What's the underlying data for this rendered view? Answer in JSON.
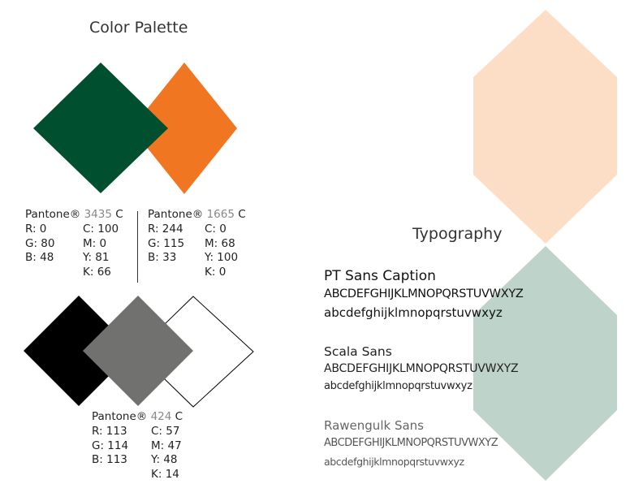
{
  "palette": {
    "title": "Color Palette",
    "colors": {
      "green": "#00502F",
      "orange": "#F07622",
      "black": "#000000",
      "gray": "#717270",
      "white": "#FFFFFF",
      "peach": "#FCDDC6",
      "sage": "#BED3CA"
    },
    "swatch_1": {
      "pantone_prefix": "Pantone®",
      "pantone_code": "3435",
      "pantone_suffix": "C",
      "r": "R: 0",
      "g": "G: 80",
      "b": "B: 48",
      "c": "C: 100",
      "m": "M: 0",
      "y": "Y: 81",
      "k": "K: 66"
    },
    "swatch_2": {
      "pantone_prefix": "Pantone®",
      "pantone_code": "1665",
      "pantone_suffix": "C",
      "r": "R: 244",
      "g": "G: 115",
      "b": "B: 33",
      "c": "C: 0",
      "m": "M: 68",
      "y": "Y: 100",
      "k": "K: 0"
    },
    "swatch_3": {
      "pantone_prefix": "Pantone®",
      "pantone_code": "424",
      "pantone_suffix": "C",
      "r": "R: 113",
      "g": "G: 114",
      "b": "B: 113",
      "c": "C: 57",
      "m": "M: 47",
      "y": "Y: 48",
      "k": "K: 14"
    }
  },
  "typography": {
    "title": "Typography",
    "fonts": [
      {
        "name": "PT Sans Caption",
        "upper": "ABCDEFGHIJKLMNOPQRSTUVWXYZ",
        "lower": "abcdefghijklmnopqrstuvwxyz"
      },
      {
        "name": "Scala Sans",
        "upper": "ABCDEFGHIJKLMNOPQRSTUVWXYZ",
        "lower": "abcdefghijklmnopqrstuvwxyz"
      },
      {
        "name": "Rawengulk Sans",
        "upper": "ABCDEFGHIJKLMNOPQRSTUVWXYZ",
        "lower": "abcdefghijklmnopqrstuvwxyz"
      }
    ]
  }
}
